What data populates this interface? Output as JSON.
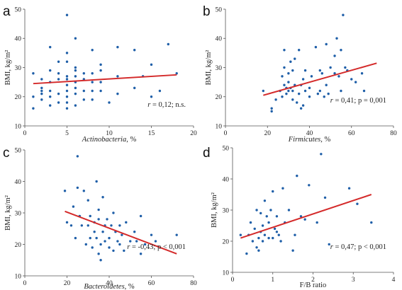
{
  "chart_data": [
    {
      "type": "scatter",
      "panel_label": "a",
      "xlabel_name": "Actinobacteria",
      "xlabel_unit": ", %",
      "ylabel": "BMI, kg/m²",
      "xlim": [
        0,
        20
      ],
      "ylim": [
        10,
        50
      ],
      "xticks": [
        0,
        5,
        10,
        15,
        20
      ],
      "yticks": [
        10,
        20,
        30,
        40,
        50
      ],
      "stat_r": "r",
      "stat_rest": " = 0,12;  n.s.",
      "trend": {
        "x": [
          1,
          18
        ],
        "y": [
          24.5,
          27.5
        ]
      },
      "color": "#1f5fa8",
      "trend_color": "#d42a2a",
      "x": [
        1,
        1,
        1,
        2,
        2,
        2,
        2,
        2,
        3,
        3,
        3,
        3,
        3,
        3,
        4,
        4,
        4,
        4,
        4,
        5,
        5,
        5,
        5,
        5,
        5,
        5,
        5,
        5,
        5,
        6,
        6,
        6,
        6,
        6,
        6,
        6,
        6,
        7,
        7,
        7,
        7,
        8,
        8,
        8,
        8,
        8,
        9,
        9,
        9,
        9,
        10,
        11,
        11,
        11,
        13,
        13,
        14,
        15,
        15,
        16,
        17,
        18
      ],
      "y": [
        16,
        20,
        28,
        23,
        26,
        22,
        19,
        21,
        37,
        25,
        29,
        22,
        17,
        20,
        32,
        28,
        26,
        21,
        18,
        48,
        35,
        32,
        27,
        26,
        24,
        22,
        20,
        18,
        16,
        40,
        29,
        27,
        25,
        21,
        17,
        30,
        23,
        28,
        26,
        22,
        19,
        36,
        28,
        25,
        22,
        19,
        25,
        22,
        29,
        31,
        18,
        37,
        27,
        21,
        36,
        23,
        27,
        31,
        20,
        22,
        38,
        28
      ]
    },
    {
      "type": "scatter",
      "panel_label": "b",
      "xlabel_name": "Firmicutes",
      "xlabel_unit": ", %",
      "ylabel": "BMI, kg/m²",
      "xlim": [
        0,
        80
      ],
      "ylim": [
        10,
        50
      ],
      "xticks": [
        0,
        20,
        40,
        60,
        80
      ],
      "yticks": [
        10,
        20,
        30,
        40,
        50
      ],
      "stat_r": "r",
      "stat_rest": " = 0,41; p = 0,001",
      "trend": {
        "x": [
          18,
          72
        ],
        "y": [
          20.5,
          31.5
        ]
      },
      "color": "#1f5fa8",
      "trend_color": "#d42a2a",
      "x": [
        18,
        22,
        22,
        24,
        26,
        27,
        27,
        28,
        28,
        28,
        29,
        29,
        30,
        30,
        30,
        31,
        31,
        32,
        32,
        32,
        33,
        33,
        34,
        35,
        35,
        36,
        36,
        37,
        37,
        38,
        38,
        40,
        40,
        41,
        43,
        44,
        45,
        45,
        46,
        47,
        48,
        48,
        49,
        50,
        52,
        52,
        53,
        54,
        55,
        55,
        56,
        57,
        58,
        60,
        62,
        65,
        66
      ],
      "y": [
        22,
        16,
        15,
        19,
        22,
        20,
        27,
        36,
        24,
        30,
        23,
        21,
        28,
        25,
        22,
        32,
        23,
        19,
        22,
        29,
        24,
        33,
        18,
        21,
        36,
        16,
        24,
        26,
        17,
        29,
        22,
        23,
        20,
        27,
        37,
        21,
        29,
        22,
        28,
        20,
        38,
        24,
        21,
        30,
        34,
        28,
        40,
        27,
        36,
        22,
        48,
        30,
        29,
        26,
        25,
        28,
        22
      ]
    },
    {
      "type": "scatter",
      "panel_label": "c",
      "xlabel_name": "Bacteroidetes",
      "xlabel_unit": ", %",
      "ylabel": "BMI, kg/m²",
      "xlim": [
        0,
        80
      ],
      "ylim": [
        10,
        50
      ],
      "xticks": [
        0,
        20,
        40,
        60,
        80
      ],
      "yticks": [
        10,
        20,
        30,
        40,
        50
      ],
      "stat_r": "r",
      "stat_rest": " = -0,43; p < 0,001",
      "trend": {
        "x": [
          19,
          72
        ],
        "y": [
          30.5,
          17
        ]
      },
      "color": "#1f5fa8",
      "trend_color": "#d42a2a",
      "x": [
        19,
        20,
        22,
        23,
        24,
        25,
        25,
        26,
        27,
        28,
        29,
        30,
        30,
        31,
        31,
        32,
        33,
        33,
        34,
        34,
        35,
        35,
        35,
        36,
        36,
        37,
        37,
        38,
        38,
        39,
        40,
        40,
        41,
        42,
        42,
        43,
        44,
        45,
        45,
        46,
        47,
        48,
        50,
        52,
        53,
        55,
        55,
        57,
        60,
        62,
        72
      ],
      "y": [
        37,
        27,
        26,
        32,
        22,
        48,
        38,
        29,
        26,
        37,
        20,
        26,
        34,
        22,
        29,
        19,
        27,
        24,
        40,
        22,
        17,
        28,
        31,
        15,
        20,
        24,
        35,
        21,
        26,
        28,
        22,
        19,
        26,
        18,
        30,
        24,
        21,
        20,
        26,
        23,
        18,
        27,
        21,
        24,
        21,
        17,
        29,
        20,
        23,
        21,
        23
      ]
    },
    {
      "type": "scatter",
      "panel_label": "d",
      "xlabel_name": "F/B ratio",
      "xlabel_unit": "",
      "ylabel": "BMI, kg/m²",
      "xlim": [
        0,
        4
      ],
      "ylim": [
        10,
        50
      ],
      "xticks": [
        0,
        1,
        2,
        3,
        4
      ],
      "yticks": [
        10,
        20,
        30,
        40,
        50
      ],
      "stat_r": "r",
      "stat_rest": " = 0,47; p < 0,001",
      "trend": {
        "x": [
          0.2,
          3.45
        ],
        "y": [
          21,
          35
        ]
      },
      "color": "#1f5fa8",
      "trend_color": "#d42a2a",
      "x": [
        0.2,
        0.35,
        0.4,
        0.45,
        0.5,
        0.55,
        0.6,
        0.6,
        0.65,
        0.65,
        0.7,
        0.7,
        0.75,
        0.75,
        0.8,
        0.8,
        0.85,
        0.9,
        0.9,
        0.95,
        1.0,
        1.0,
        1.05,
        1.1,
        1.1,
        1.15,
        1.2,
        1.25,
        1.3,
        1.4,
        1.5,
        1.55,
        1.6,
        1.7,
        1.8,
        1.9,
        2.1,
        2.2,
        2.3,
        2.4,
        2.9,
        3.1,
        3.45
      ],
      "y": [
        22,
        16,
        22,
        26,
        20,
        24,
        18,
        30,
        21,
        17,
        29,
        23,
        20,
        25,
        33,
        22,
        28,
        21,
        26,
        30,
        36,
        21,
        24,
        28,
        23,
        22,
        20,
        37,
        26,
        30,
        17,
        22,
        41,
        28,
        27,
        38,
        26,
        48,
        34,
        19,
        37,
        32,
        26
      ]
    }
  ]
}
